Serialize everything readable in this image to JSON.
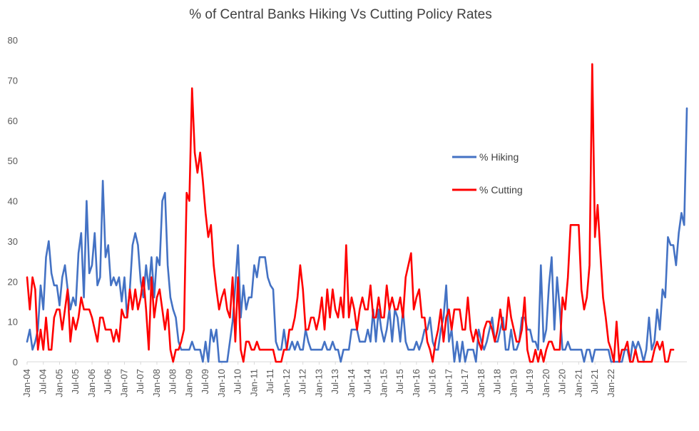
{
  "chart_data": {
    "type": "line",
    "title": "% of Central Banks Hiking Vs Cutting Policy Rates",
    "xlabel": "",
    "ylabel": "",
    "ylim": [
      0,
      80
    ],
    "yticks": [
      0,
      10,
      20,
      30,
      40,
      50,
      60,
      70,
      80
    ],
    "x_start": "Jan-04",
    "x_end": "Jun-22",
    "x_tick_labels": [
      "Jan-04",
      "Jul-04",
      "Jan-05",
      "Jul-05",
      "Jan-06",
      "Jul-06",
      "Jan-07",
      "Jul-07",
      "Jan-08",
      "Jul-08",
      "Jan-09",
      "Jul-09",
      "Jan-10",
      "Jul-10",
      "Jan-11",
      "Jul-11",
      "Jan-12",
      "Jul-12",
      "Jan-13",
      "Jul-13",
      "Jan-14",
      "Jul-14",
      "Jan-15",
      "Jul-15",
      "Jan-16",
      "Jul-16",
      "Jan-17",
      "Jul-17",
      "Jan-18",
      "Jul-18",
      "Jan-19",
      "Jul-19",
      "Jan-20",
      "Jul-20",
      "Jan-21",
      "Jul-21",
      "Jan-22"
    ],
    "grid": false,
    "legend_position": "right-middle",
    "series": [
      {
        "name": "% Hiking",
        "color": "#4472C4",
        "values": [
          5,
          8,
          3,
          5,
          8,
          19,
          13,
          26,
          30,
          22,
          19,
          19,
          14,
          21,
          24,
          18,
          13,
          16,
          14,
          27,
          32,
          16,
          40,
          22,
          24,
          32,
          19,
          21,
          45,
          26,
          29,
          19,
          21,
          19,
          21,
          15,
          21,
          11,
          18,
          29,
          32,
          29,
          20,
          16,
          24,
          18,
          26,
          16,
          26,
          24,
          40,
          42,
          24,
          16,
          13,
          11,
          5,
          3,
          3,
          3,
          3,
          5,
          3,
          3,
          3,
          0,
          5,
          0,
          8,
          5,
          8,
          0,
          0,
          0,
          0,
          5,
          10,
          19,
          29,
          11,
          19,
          13,
          16,
          16,
          24,
          21,
          26,
          26,
          26,
          21,
          19,
          18,
          5,
          3,
          3,
          8,
          3,
          3,
          5,
          3,
          5,
          3,
          3,
          8,
          5,
          3,
          3,
          3,
          3,
          3,
          5,
          3,
          3,
          5,
          3,
          3,
          0,
          3,
          3,
          3,
          8,
          8,
          8,
          5,
          5,
          5,
          8,
          5,
          13,
          5,
          13,
          8,
          5,
          8,
          13,
          5,
          13,
          11,
          5,
          13,
          5,
          3,
          3,
          3,
          5,
          3,
          5,
          8,
          8,
          11,
          5,
          3,
          3,
          8,
          11,
          19,
          5,
          8,
          0,
          5,
          0,
          5,
          0,
          3,
          3,
          3,
          0,
          8,
          5,
          3,
          5,
          8,
          11,
          5,
          5,
          8,
          11,
          3,
          3,
          8,
          3,
          3,
          5,
          11,
          11,
          8,
          8,
          5,
          5,
          3,
          24,
          5,
          8,
          19,
          26,
          8,
          21,
          13,
          3,
          3,
          5,
          3,
          3,
          3,
          3,
          3,
          0,
          3,
          3,
          0,
          3,
          3,
          3,
          3,
          3,
          3,
          0,
          0,
          0,
          0,
          0,
          3,
          3,
          0,
          5,
          3,
          5,
          3,
          0,
          3,
          11,
          3,
          5,
          13,
          8,
          18,
          16,
          31,
          29,
          29,
          24,
          32,
          37,
          34,
          63
        ]
      },
      {
        "name": "% Cutting",
        "color": "#FF0000",
        "values": [
          21,
          13,
          21,
          18,
          3,
          8,
          3,
          11,
          3,
          3,
          11,
          13,
          13,
          8,
          13,
          18,
          5,
          11,
          8,
          11,
          16,
          13,
          13,
          13,
          11,
          8,
          5,
          11,
          11,
          8,
          8,
          8,
          5,
          8,
          5,
          13,
          11,
          11,
          18,
          13,
          18,
          13,
          16,
          21,
          13,
          3,
          21,
          11,
          16,
          18,
          13,
          8,
          13,
          3,
          0,
          3,
          3,
          5,
          8,
          42,
          40,
          68,
          52,
          47,
          52,
          45,
          37,
          31,
          34,
          24,
          18,
          13,
          16,
          18,
          13,
          11,
          21,
          5,
          21,
          3,
          0,
          5,
          5,
          3,
          3,
          5,
          3,
          3,
          3,
          3,
          3,
          3,
          0,
          0,
          0,
          3,
          3,
          8,
          8,
          11,
          16,
          24,
          18,
          8,
          8,
          11,
          11,
          8,
          11,
          16,
          8,
          18,
          11,
          18,
          13,
          11,
          16,
          11,
          29,
          11,
          16,
          13,
          8,
          13,
          16,
          13,
          13,
          19,
          11,
          11,
          16,
          11,
          11,
          19,
          13,
          16,
          13,
          13,
          16,
          11,
          21,
          24,
          27,
          13,
          16,
          18,
          11,
          11,
          5,
          3,
          0,
          5,
          8,
          13,
          5,
          11,
          13,
          8,
          13,
          13,
          13,
          8,
          8,
          16,
          8,
          5,
          8,
          5,
          3,
          8,
          10,
          10,
          8,
          5,
          8,
          13,
          8,
          8,
          16,
          11,
          8,
          5,
          5,
          8,
          16,
          3,
          0,
          0,
          3,
          0,
          3,
          0,
          3,
          5,
          5,
          3,
          3,
          3,
          16,
          13,
          21,
          34,
          34,
          34,
          34,
          18,
          13,
          16,
          24,
          74,
          31,
          39,
          27,
          16,
          11,
          5,
          3,
          0,
          10,
          0,
          3,
          3,
          5,
          0,
          0,
          3,
          0,
          0,
          0,
          0,
          0,
          0,
          3,
          5,
          3,
          5,
          0,
          0,
          3,
          3
        ]
      }
    ]
  }
}
